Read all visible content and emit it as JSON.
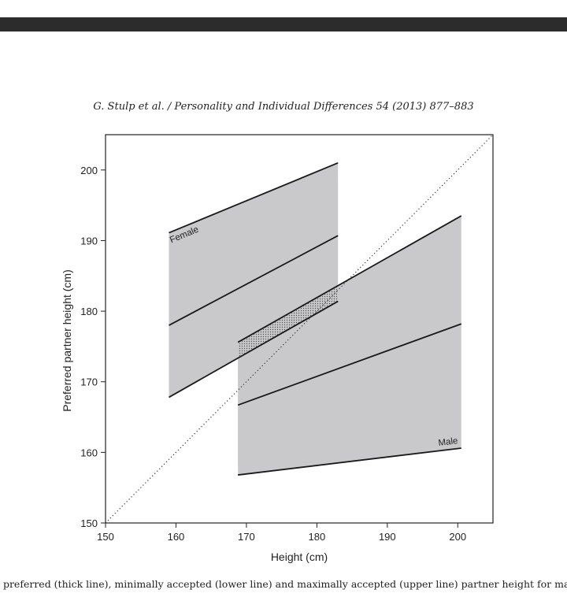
{
  "header": {
    "citation": "G. Stulp et al. / Personality and Individual Differences 54 (2013) 877–883"
  },
  "caption": {
    "text": "r preferred (thick line), minimally accepted (lower line) and maximally accepted (upper line) partner height for males and fer"
  },
  "colors": {
    "band_fill": "#c9c9cb",
    "line": "#1a1a1a",
    "topbar": "#2c2c2c"
  },
  "chart_data": {
    "type": "area",
    "xlabel": "Height (cm)",
    "ylabel": "Preferred partner height (cm)",
    "xlim": [
      150,
      205
    ],
    "ylim": [
      150,
      205
    ],
    "xticks": [
      150,
      160,
      170,
      180,
      190,
      200
    ],
    "yticks": [
      150,
      160,
      170,
      180,
      190,
      200
    ],
    "grid": false,
    "reference_line": {
      "style": "dotted",
      "from": [
        150,
        150
      ],
      "to": [
        205,
        205
      ]
    },
    "series": [
      {
        "name": "Female",
        "x": [
          159,
          183
        ],
        "maximally_accepted": [
          191.1,
          201.0
        ],
        "preferred": [
          178.0,
          190.7
        ],
        "minimally_accepted": [
          167.8,
          181.4
        ]
      },
      {
        "name": "Male",
        "x": [
          168.8,
          200.5
        ],
        "maximally_accepted": [
          175.6,
          193.5
        ],
        "preferred": [
          166.7,
          178.2
        ],
        "minimally_accepted": [
          156.8,
          160.6
        ]
      }
    ]
  }
}
